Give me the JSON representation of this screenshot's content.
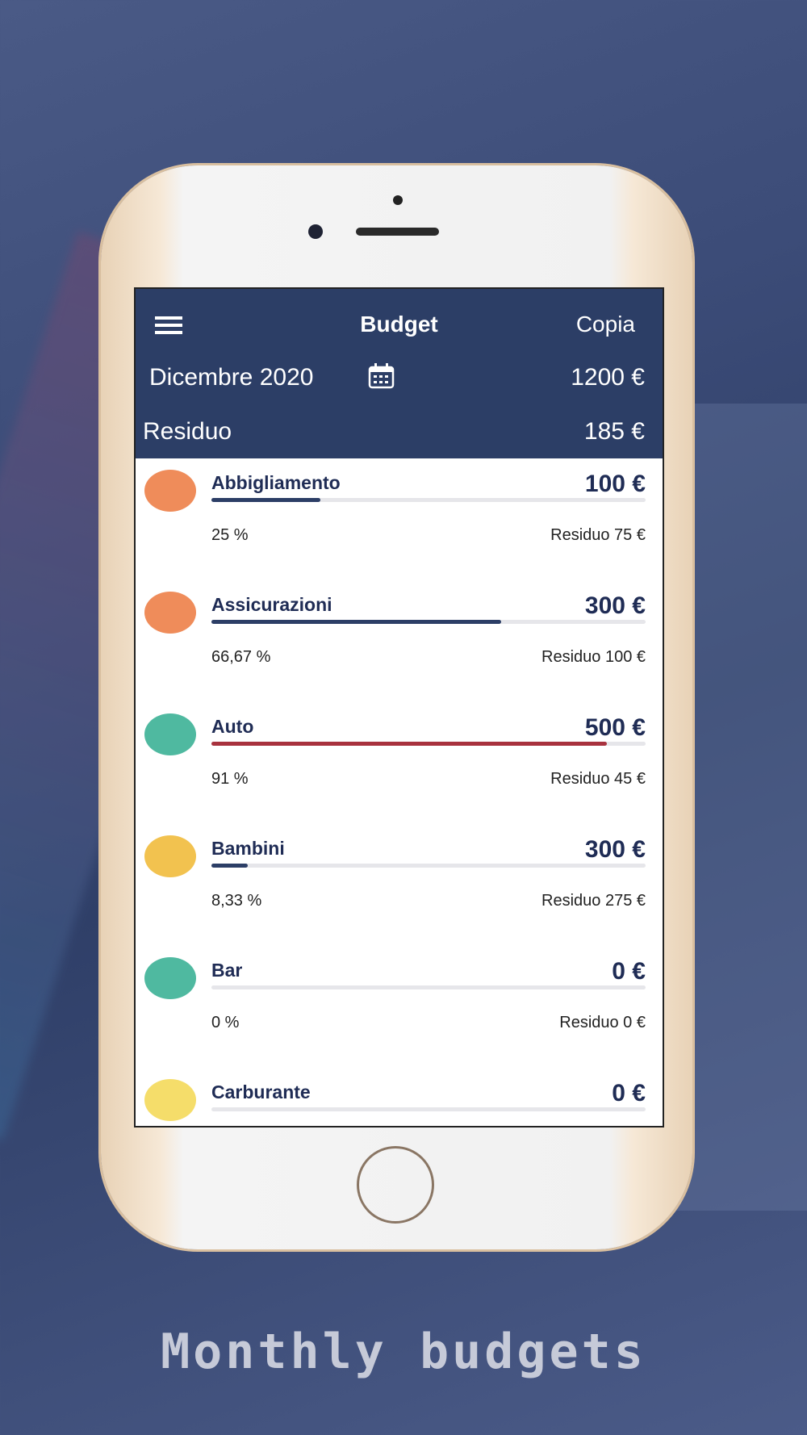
{
  "app_header": {
    "title": "Budget",
    "action": "Copia"
  },
  "period": {
    "label": "Dicembre 2020",
    "total": "1200 €"
  },
  "remaining": {
    "label": "Residuo",
    "amount": "185 €"
  },
  "items": [
    {
      "name": "Abbigliamento",
      "amount": "100 €",
      "percent": 25,
      "percent_label": "25 %",
      "remaining": "Residuo 75 €",
      "bar_color": "#2c3e66",
      "icon_color": "#ef8c5a"
    },
    {
      "name": "Assicurazioni",
      "amount": "300 €",
      "percent": 66.67,
      "percent_label": "66,67 %",
      "remaining": "Residuo 100 €",
      "bar_color": "#2c3e66",
      "icon_color": "#ef8c5a"
    },
    {
      "name": "Auto",
      "amount": "500 €",
      "percent": 91,
      "percent_label": "91 %",
      "remaining": "Residuo 45 €",
      "bar_color": "#a8323e",
      "icon_color": "#4fb9a0"
    },
    {
      "name": "Bambini",
      "amount": "300 €",
      "percent": 8.33,
      "percent_label": "8,33 %",
      "remaining": "Residuo 275 €",
      "bar_color": "#2c3e66",
      "icon_color": "#f2c24f"
    },
    {
      "name": "Bar",
      "amount": "0 €",
      "percent": 0,
      "percent_label": "0 %",
      "remaining": "Residuo 0 €",
      "bar_color": "#2c3e66",
      "icon_color": "#4fb9a0"
    },
    {
      "name": "Carburante",
      "amount": "0 €",
      "icon_color": "#f5dd6a"
    }
  ],
  "footer_caption": "Monthly budgets"
}
